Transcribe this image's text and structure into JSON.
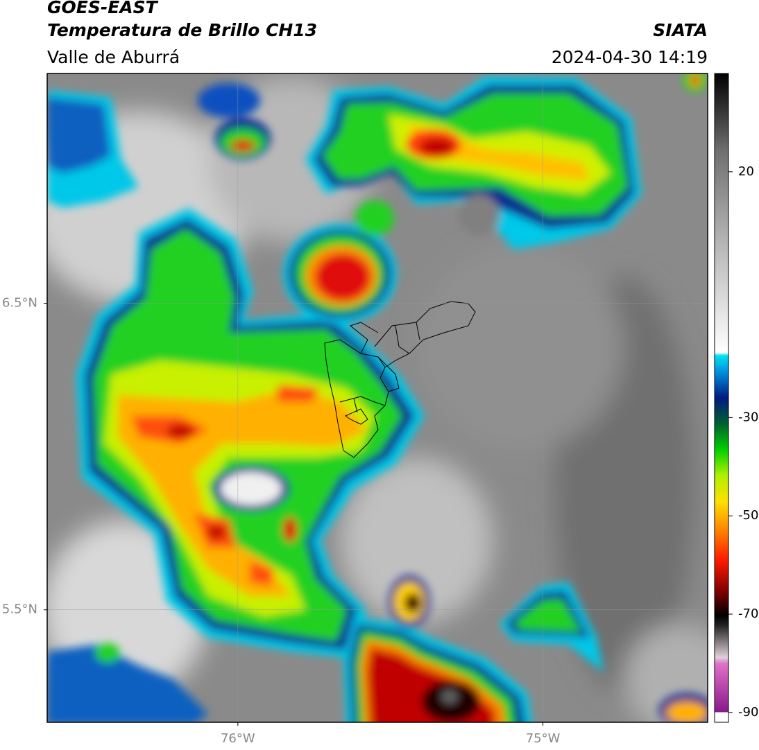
{
  "header": {
    "title": "GOES-EAST",
    "subtitle": "Temperatura de Brillo CH13",
    "region": "Valle de Aburrá",
    "source": "SIATA",
    "datetime": "2024-04-30 14:19"
  },
  "map": {
    "xlim": [
      -76.625,
      -74.46
    ],
    "ylim": [
      5.133,
      7.25
    ],
    "xticks": [
      {
        "value": -76,
        "label": "76°W"
      },
      {
        "value": -75,
        "label": "75°W"
      }
    ],
    "yticks": [
      {
        "value": 6.5,
        "label": "6.5°N"
      },
      {
        "value": 5.5,
        "label": "5.5°N"
      }
    ],
    "grid": true
  },
  "colorbar": {
    "lim": [
      -92,
      40
    ],
    "ticks": [
      20,
      -30,
      -50,
      -70,
      -90
    ]
  }
}
